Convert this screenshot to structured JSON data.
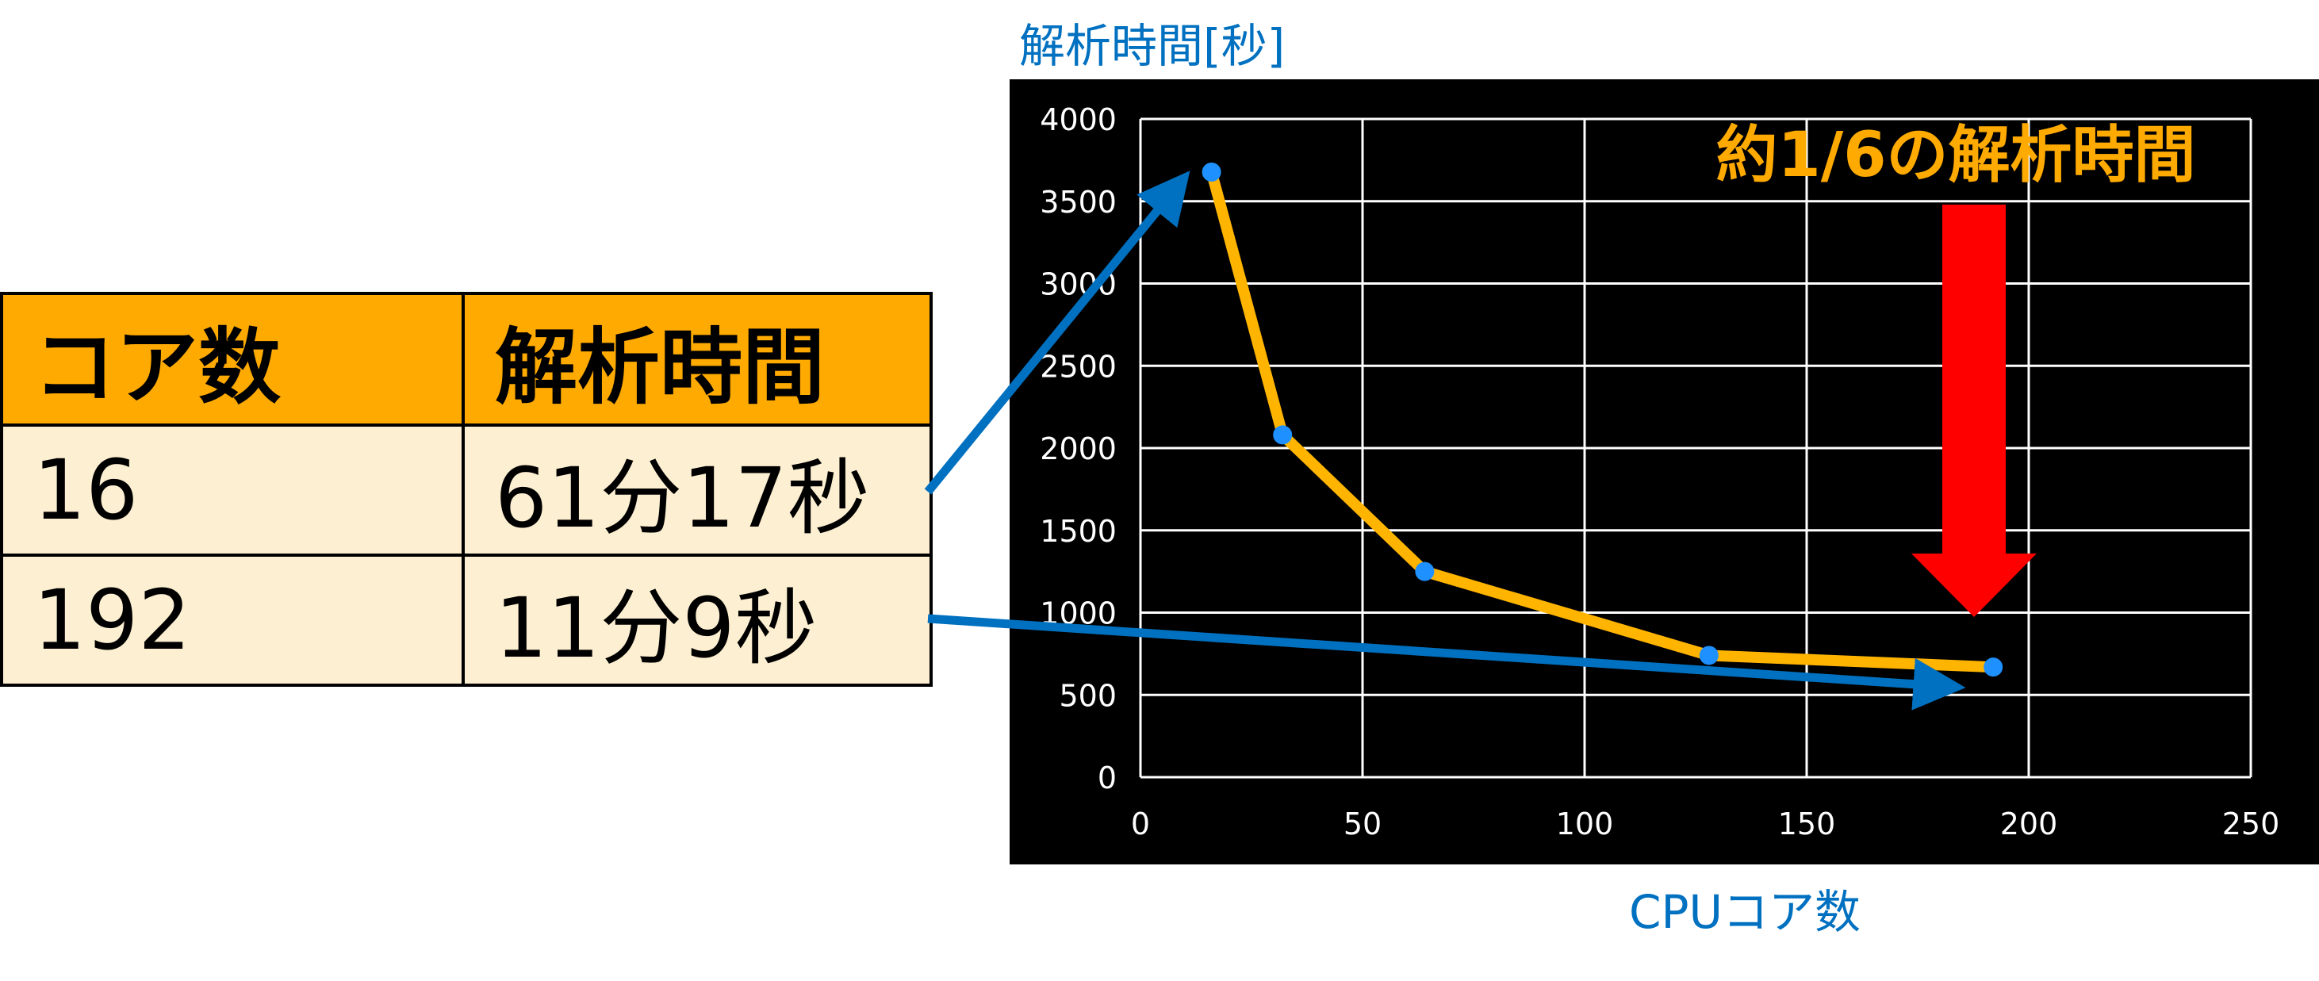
{
  "table": {
    "headers": [
      "コア数",
      "解析時間"
    ],
    "rows": [
      [
        "16",
        "61分17秒"
      ],
      [
        "192",
        "11分9秒"
      ]
    ]
  },
  "chart_data": {
    "type": "line",
    "title": "",
    "ylabel": "解析時間[秒]",
    "xlabel": "CPUコア数",
    "x": [
      16,
      32,
      64,
      128,
      192
    ],
    "series": [
      {
        "values": [
          3677,
          2080,
          1250,
          740,
          669
        ]
      }
    ],
    "xlim": [
      0,
      250
    ],
    "ylim": [
      0,
      4000
    ],
    "xticks": [
      "0",
      "50",
      "100",
      "150",
      "200",
      "250"
    ],
    "yticks": [
      "0",
      "500",
      "1000",
      "1500",
      "2000",
      "2500",
      "3000",
      "3500",
      "4000"
    ],
    "grid": true,
    "annotation": "約1/6の解析時間",
    "colors": {
      "background": "#000000",
      "line": "#ffb400",
      "marker": "#1e90ff",
      "axis_text": "#ffffff",
      "label": "#0070c0",
      "annotation": "#ffaa00",
      "down_arrow": "#ff0000",
      "pointer_arrow": "#0070c0"
    }
  }
}
